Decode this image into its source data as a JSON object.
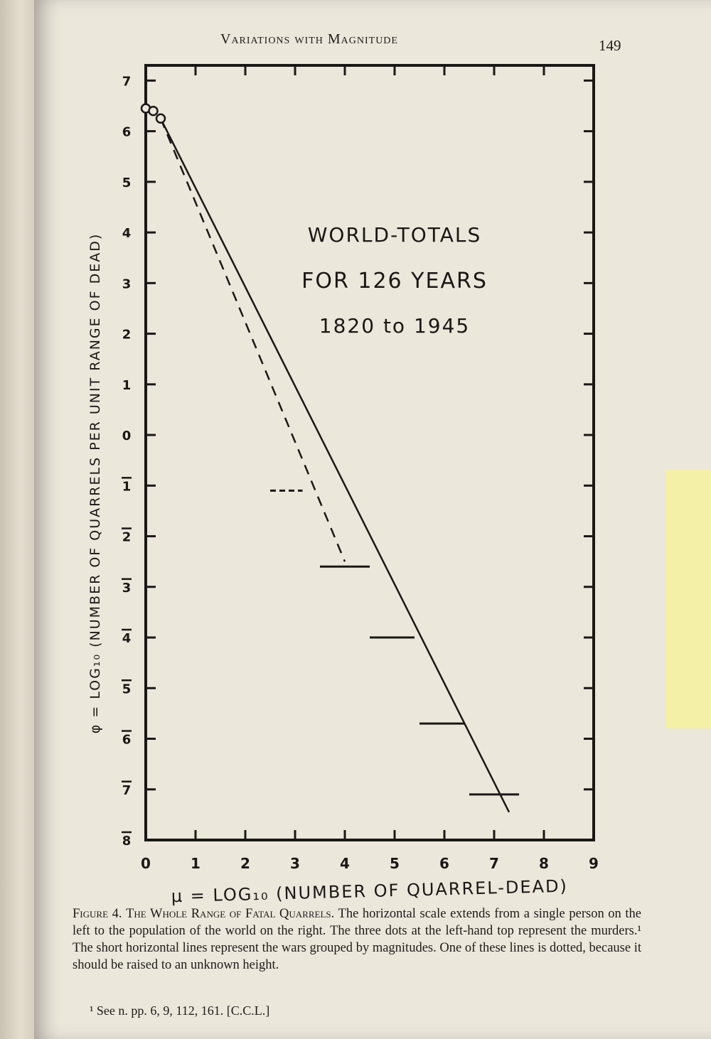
{
  "header": {
    "running_head": "Variations with Magnitude",
    "page_number": "149"
  },
  "caption": {
    "figure_label": "Figure 4.",
    "figure_title": "The Whole Range of Fatal Quarrels.",
    "text": "The horizontal scale extends from a single person on the left to the population of the world on the right. The three dots at the left-hand top represent the murders.¹ The short horizontal lines represent the wars grouped by magnitudes. One of these lines is dotted, because it should be raised to an unknown height."
  },
  "footnote": {
    "text": "¹ See n. pp. 6, 9, 112, 161. [C.C.L.]"
  },
  "colors": {
    "ink": "#1a1816",
    "paper": "#ece7db",
    "sticky_note": "#f4f0a8"
  },
  "chart_data": {
    "type": "scatter",
    "annotation_lines": [
      "WORLD-TOTALS",
      "FOR 126 YEARS",
      "1820 to 1945"
    ],
    "xlabel": "μ = LOG₁₀ (NUMBER OF QUARREL-DEAD)",
    "ylabel": "φ = LOG₁₀ (NUMBER OF QUARRELS PER UNIT RANGE OF DEAD)",
    "xlim": [
      0,
      9
    ],
    "ylim": [
      -8,
      7.3
    ],
    "x_ticks": [
      "0",
      "1",
      "2",
      "3",
      "4",
      "5",
      "6",
      "7",
      "8",
      "9"
    ],
    "y_ticks": [
      {
        "value": 7,
        "label": "7"
      },
      {
        "value": 6,
        "label": "6"
      },
      {
        "value": 5,
        "label": "5"
      },
      {
        "value": 4,
        "label": "4"
      },
      {
        "value": 3,
        "label": "3"
      },
      {
        "value": 2,
        "label": "2"
      },
      {
        "value": 1,
        "label": "1"
      },
      {
        "value": 0,
        "label": "0"
      },
      {
        "value": -1,
        "label": "1"
      },
      {
        "value": -2,
        "label": "2"
      },
      {
        "value": -3,
        "label": "3"
      },
      {
        "value": -4,
        "label": "4"
      },
      {
        "value": -5,
        "label": "5"
      },
      {
        "value": -6,
        "label": "6"
      },
      {
        "value": -7,
        "label": "7"
      },
      {
        "value": -8,
        "label": "8"
      }
    ],
    "points": [
      {
        "x": 0.0,
        "y": 6.45
      },
      {
        "x": 0.15,
        "y": 6.4
      },
      {
        "x": 0.3,
        "y": 6.25
      }
    ],
    "war_groups": [
      {
        "x_start": 2.5,
        "x_end": 3.15,
        "y": -1.1,
        "dotted": true
      },
      {
        "x_start": 3.5,
        "x_end": 4.5,
        "y": -2.6
      },
      {
        "x_start": 4.5,
        "x_end": 5.4,
        "y": -4.0
      },
      {
        "x_start": 5.5,
        "x_end": 6.4,
        "y": -5.7
      },
      {
        "x_start": 6.5,
        "x_end": 7.5,
        "y": -7.1
      }
    ],
    "solid_line": [
      {
        "x": 0.3,
        "y": 6.25
      },
      {
        "x": 7.3,
        "y": -7.45
      }
    ],
    "dashed_line": [
      {
        "x": 0.3,
        "y": 6.25
      },
      {
        "x": 4.0,
        "y": -2.5
      }
    ]
  }
}
